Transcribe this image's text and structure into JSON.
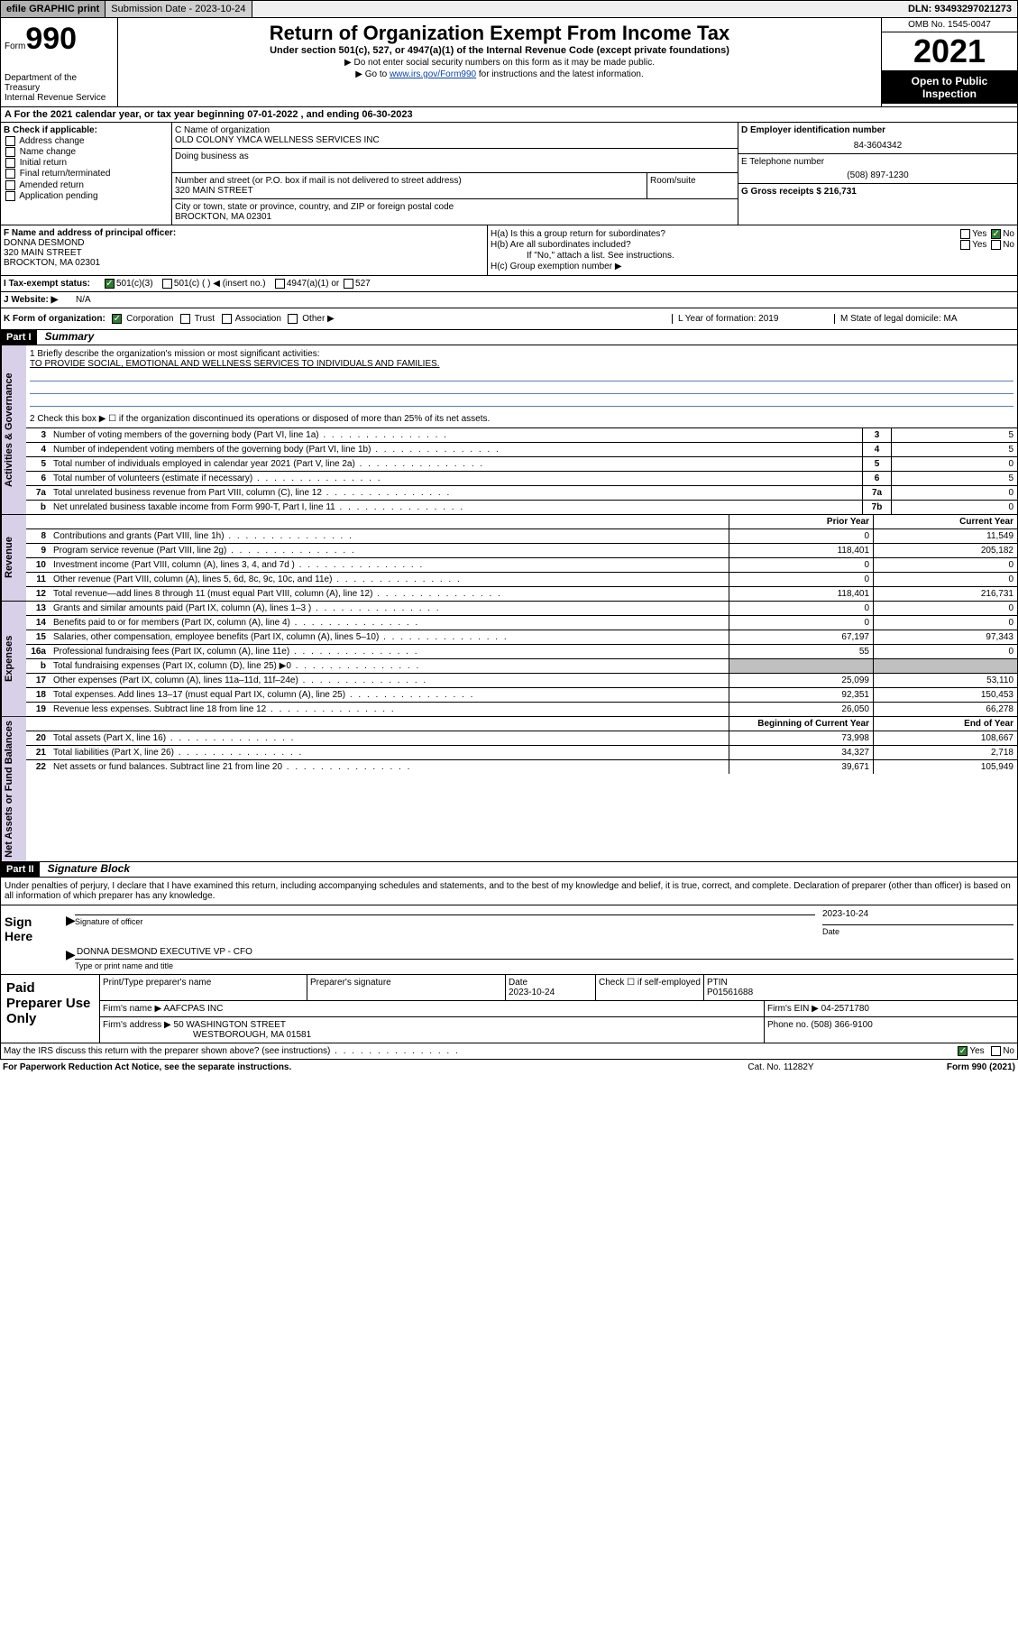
{
  "topbar": {
    "efile": "efile GRAPHIC print",
    "subdate_label": "Submission Date - 2023-10-24",
    "dln": "DLN: 93493297021273"
  },
  "header": {
    "form_label": "Form",
    "form_num": "990",
    "dept": "Department of the Treasury",
    "irs": "Internal Revenue Service",
    "title": "Return of Organization Exempt From Income Tax",
    "subtitle": "Under section 501(c), 527, or 4947(a)(1) of the Internal Revenue Code (except private foundations)",
    "note1": "▶ Do not enter social security numbers on this form as it may be made public.",
    "note2_pre": "▶ Go to ",
    "note2_link": "www.irs.gov/Form990",
    "note2_post": " for instructions and the latest information.",
    "omb": "OMB No. 1545-0047",
    "year": "2021",
    "open": "Open to Public Inspection"
  },
  "period": {
    "text": "For the 2021 calendar year, or tax year beginning 07-01-2022   , and ending 06-30-2023"
  },
  "boxB": {
    "title": "B Check if applicable:",
    "opts": [
      "Address change",
      "Name change",
      "Initial return",
      "Final return/terminated",
      "Amended return",
      "Application pending"
    ]
  },
  "boxC": {
    "name_label": "C Name of organization",
    "name": "OLD COLONY YMCA WELLNESS SERVICES INC",
    "dba_label": "Doing business as",
    "street_label": "Number and street (or P.O. box if mail is not delivered to street address)",
    "street": "320 MAIN STREET",
    "suite_label": "Room/suite",
    "city_label": "City or town, state or province, country, and ZIP or foreign postal code",
    "city": "BROCKTON, MA  02301"
  },
  "boxD": {
    "label": "D Employer identification number",
    "val": "84-3604342"
  },
  "boxE": {
    "label": "E Telephone number",
    "val": "(508) 897-1230"
  },
  "boxG": {
    "label": "G Gross receipts $",
    "val": "216,731"
  },
  "boxF": {
    "label": "F  Name and address of principal officer:",
    "name": "DONNA DESMOND",
    "street": "320 MAIN STREET",
    "city": "BROCKTON, MA  02301"
  },
  "boxH": {
    "ha": "H(a)  Is this a group return for subordinates?",
    "hb": "H(b)  Are all subordinates included?",
    "hb_note": "If \"No,\" attach a list. See instructions.",
    "hc": "H(c)  Group exemption number ▶",
    "yes": "Yes",
    "no": "No"
  },
  "taxStatus": {
    "label": "Tax-exempt status:",
    "o1": "501(c)(3)",
    "o2": "501(c) (  ) ◀ (insert no.)",
    "o3": "4947(a)(1) or",
    "o4": "527"
  },
  "website": {
    "label": "J   Website: ▶",
    "val": "N/A"
  },
  "rowI": "I",
  "klm": {
    "k": "K Form of organization:",
    "k_opts": [
      "Corporation",
      "Trust",
      "Association",
      "Other ▶"
    ],
    "l": "L Year of formation: 2019",
    "m": "M State of legal domicile: MA"
  },
  "part1": {
    "num": "Part I",
    "title": "Summary"
  },
  "mission": {
    "q1": "1   Briefly describe the organization's mission or most significant activities:",
    "text": "TO PROVIDE SOCIAL, EMOTIONAL AND WELLNESS SERVICES TO INDIVIDUALS AND FAMILIES.",
    "q2": "2   Check this box ▶ ☐  if the organization discontinued its operations or disposed of more than 25% of its net assets."
  },
  "gov_lines": [
    {
      "n": "3",
      "t": "Number of voting members of the governing body (Part VI, line 1a)",
      "box": "3",
      "v": "5"
    },
    {
      "n": "4",
      "t": "Number of independent voting members of the governing body (Part VI, line 1b)",
      "box": "4",
      "v": "5"
    },
    {
      "n": "5",
      "t": "Total number of individuals employed in calendar year 2021 (Part V, line 2a)",
      "box": "5",
      "v": "0"
    },
    {
      "n": "6",
      "t": "Total number of volunteers (estimate if necessary)",
      "box": "6",
      "v": "5"
    },
    {
      "n": "7a",
      "t": "Total unrelated business revenue from Part VIII, column (C), line 12",
      "box": "7a",
      "v": "0"
    },
    {
      "n": "b",
      "t": "Net unrelated business taxable income from Form 990-T, Part I, line 11",
      "box": "7b",
      "v": "0"
    }
  ],
  "side_labels": {
    "gov": "Activities & Governance",
    "rev": "Revenue",
    "exp": "Expenses",
    "net": "Net Assets or Fund Balances"
  },
  "col_heads": {
    "prior": "Prior Year",
    "curr": "Current Year",
    "beg": "Beginning of Current Year",
    "end": "End of Year"
  },
  "rev_lines": [
    {
      "n": "8",
      "t": "Contributions and grants (Part VIII, line 1h)",
      "p": "0",
      "c": "11,549"
    },
    {
      "n": "9",
      "t": "Program service revenue (Part VIII, line 2g)",
      "p": "118,401",
      "c": "205,182"
    },
    {
      "n": "10",
      "t": "Investment income (Part VIII, column (A), lines 3, 4, and 7d )",
      "p": "0",
      "c": "0"
    },
    {
      "n": "11",
      "t": "Other revenue (Part VIII, column (A), lines 5, 6d, 8c, 9c, 10c, and 11e)",
      "p": "0",
      "c": "0"
    },
    {
      "n": "12",
      "t": "Total revenue—add lines 8 through 11 (must equal Part VIII, column (A), line 12)",
      "p": "118,401",
      "c": "216,731"
    }
  ],
  "exp_lines": [
    {
      "n": "13",
      "t": "Grants and similar amounts paid (Part IX, column (A), lines 1–3 )",
      "p": "0",
      "c": "0"
    },
    {
      "n": "14",
      "t": "Benefits paid to or for members (Part IX, column (A), line 4)",
      "p": "0",
      "c": "0"
    },
    {
      "n": "15",
      "t": "Salaries, other compensation, employee benefits (Part IX, column (A), lines 5–10)",
      "p": "67,197",
      "c": "97,343"
    },
    {
      "n": "16a",
      "t": "Professional fundraising fees (Part IX, column (A), line 11e)",
      "p": "55",
      "c": "0"
    },
    {
      "n": "b",
      "t": "Total fundraising expenses (Part IX, column (D), line 25) ▶0",
      "p": "",
      "c": "",
      "grey": true
    },
    {
      "n": "17",
      "t": "Other expenses (Part IX, column (A), lines 11a–11d, 11f–24e)",
      "p": "25,099",
      "c": "53,110"
    },
    {
      "n": "18",
      "t": "Total expenses. Add lines 13–17 (must equal Part IX, column (A), line 25)",
      "p": "92,351",
      "c": "150,453"
    },
    {
      "n": "19",
      "t": "Revenue less expenses. Subtract line 18 from line 12",
      "p": "26,050",
      "c": "66,278"
    }
  ],
  "net_lines": [
    {
      "n": "20",
      "t": "Total assets (Part X, line 16)",
      "p": "73,998",
      "c": "108,667"
    },
    {
      "n": "21",
      "t": "Total liabilities (Part X, line 26)",
      "p": "34,327",
      "c": "2,718"
    },
    {
      "n": "22",
      "t": "Net assets or fund balances. Subtract line 21 from line 20",
      "p": "39,671",
      "c": "105,949"
    }
  ],
  "part2": {
    "num": "Part II",
    "title": "Signature Block"
  },
  "sig": {
    "decl": "Under penalties of perjury, I declare that I have examined this return, including accompanying schedules and statements, and to the best of my knowledge and belief, it is true, correct, and complete. Declaration of preparer (other than officer) is based on all information of which preparer has any knowledge.",
    "here": "Sign Here",
    "sig_officer": "Signature of officer",
    "date": "2023-10-24",
    "date_label": "Date",
    "name": "DONNA DESMOND  EXECUTIVE VP - CFO",
    "name_label": "Type or print name and title"
  },
  "prep": {
    "title": "Paid Preparer Use Only",
    "h1": "Print/Type preparer's name",
    "h2": "Preparer's signature",
    "h3": "Date",
    "h3v": "2023-10-24",
    "h4": "Check ☐ if self-employed",
    "h5": "PTIN",
    "h5v": "P01561688",
    "firm_name_l": "Firm's name    ▶",
    "firm_name": "AAFCPAS INC",
    "firm_ein_l": "Firm's EIN ▶",
    "firm_ein": "04-2571780",
    "firm_addr_l": "Firm's address ▶",
    "firm_addr1": "50 WASHINGTON STREET",
    "firm_addr2": "WESTBOROUGH, MA  01581",
    "phone_l": "Phone no.",
    "phone": "(508) 366-9100"
  },
  "footer": {
    "discuss": "May the IRS discuss this return with the preparer shown above? (see instructions)",
    "yes": "Yes",
    "no": "No",
    "pra": "For Paperwork Reduction Act Notice, see the separate instructions.",
    "cat": "Cat. No. 11282Y",
    "form": "Form 990 (2021)"
  },
  "colors": {
    "side_bg": "#d8cfe8",
    "link": "#0645ad",
    "check_green": "#2e7d32"
  }
}
